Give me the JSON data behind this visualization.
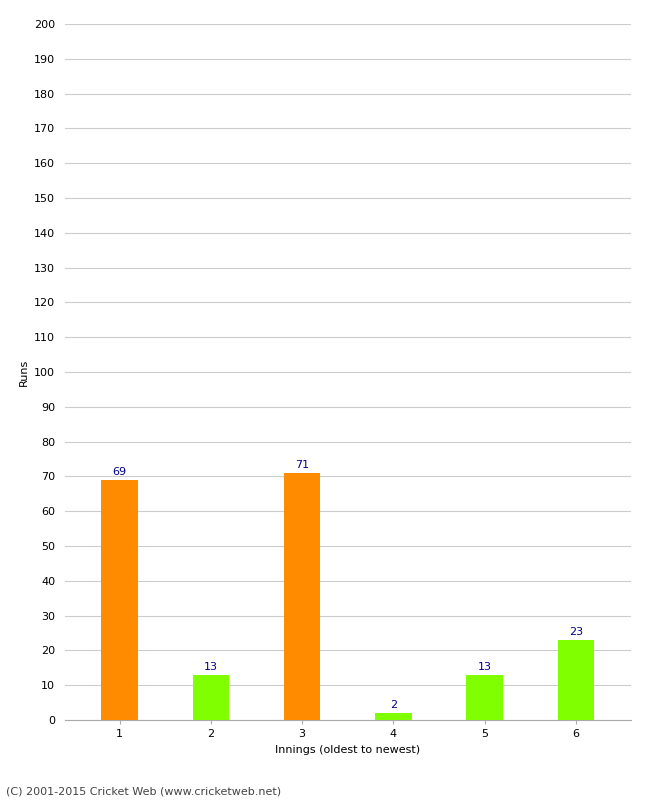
{
  "categories": [
    "1",
    "2",
    "3",
    "4",
    "5",
    "6"
  ],
  "values": [
    69,
    13,
    71,
    2,
    13,
    23
  ],
  "bar_colors": [
    "#ff8c00",
    "#7fff00",
    "#ff8c00",
    "#7fff00",
    "#7fff00",
    "#7fff00"
  ],
  "title": "",
  "xlabel": "Innings (oldest to newest)",
  "ylabel": "Runs",
  "ylim": [
    0,
    200
  ],
  "yticks": [
    0,
    10,
    20,
    30,
    40,
    50,
    60,
    70,
    80,
    90,
    100,
    110,
    120,
    130,
    140,
    150,
    160,
    170,
    180,
    190,
    200
  ],
  "label_color": "#00008b",
  "label_fontsize": 8,
  "axis_tick_fontsize": 8,
  "axis_label_fontsize": 8,
  "footer_text": "(C) 2001-2015 Cricket Web (www.cricketweb.net)",
  "footer_fontsize": 8,
  "grid_color": "#cccccc",
  "background_color": "#ffffff"
}
